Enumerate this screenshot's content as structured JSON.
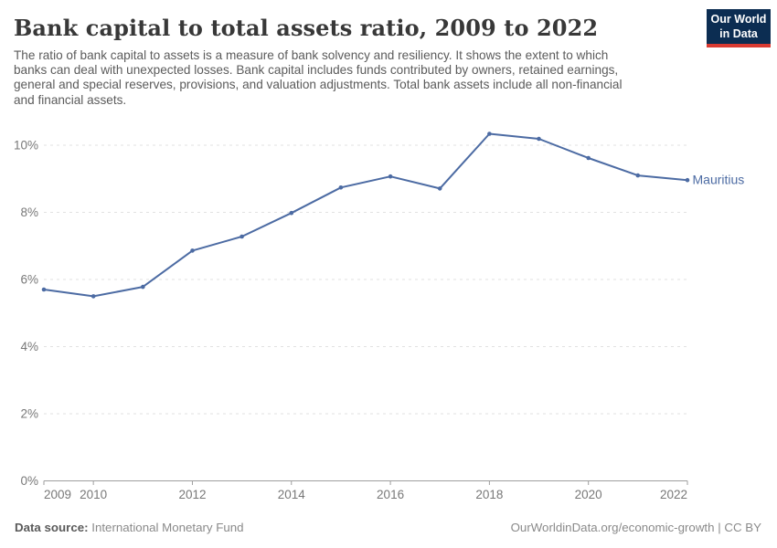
{
  "header": {
    "title": "Bank capital to total assets ratio, 2009 to 2022",
    "subtitle_lines": [
      "The ratio of bank capital to assets is a measure of bank solvency and resiliency. It shows the extent to which",
      "banks can deal with unexpected losses. Bank capital includes funds contributed by owners, retained earnings,",
      "general and special reserves, provisions, and valuation adjustments. Total bank assets include all non-financial",
      "and financial assets."
    ],
    "logo": {
      "line1": "Our World",
      "line2": "in Data",
      "bg_color": "#0c2d52",
      "bar_color": "#d93a32"
    }
  },
  "chart_data": {
    "type": "line",
    "title": "Bank capital to total assets ratio, 2009 to 2022",
    "x": [
      2009,
      2010,
      2011,
      2012,
      2013,
      2014,
      2015,
      2016,
      2017,
      2018,
      2019,
      2020,
      2021,
      2022
    ],
    "series": [
      {
        "name": "Mauritius",
        "color": "#4c6ba3",
        "values": [
          5.7,
          5.5,
          5.78,
          6.86,
          7.28,
          7.98,
          8.74,
          9.07,
          8.71,
          10.34,
          10.19,
          9.62,
          9.1,
          8.96
        ]
      }
    ],
    "xlabel": "",
    "ylabel": "",
    "ylim": [
      0,
      10.9
    ],
    "yticks": [
      0,
      2,
      4,
      6,
      8,
      10
    ],
    "ytick_suffix": "%",
    "xticks": [
      2009,
      2010,
      2012,
      2014,
      2016,
      2018,
      2020,
      2022
    ],
    "grid": "horizontal-dashed",
    "legend_position": "end-of-line",
    "colors": {
      "gridline": "#e2e2e2",
      "axis": "#9e9e9e",
      "tick_label": "#787878"
    }
  },
  "footer": {
    "source_label": "Data source:",
    "source_value": "International Monetary Fund",
    "credit": "OurWorldinData.org/economic-growth | CC BY"
  }
}
